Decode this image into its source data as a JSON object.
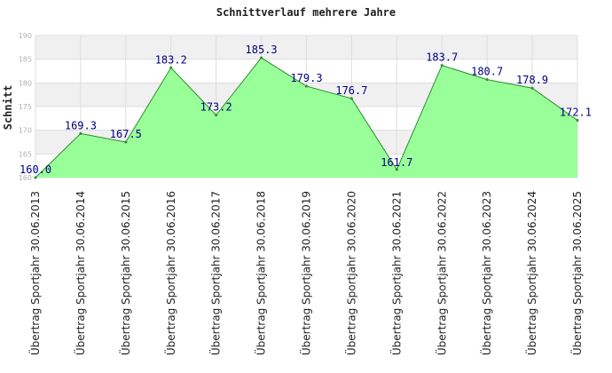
{
  "chart_data": {
    "type": "area",
    "title": "Schnittverlauf mehrere Jahre",
    "xlabel": "",
    "ylabel": "Schnitt",
    "ylim": [
      160,
      190
    ],
    "yticks": [
      160,
      165,
      170,
      175,
      180,
      185,
      190
    ],
    "grid": true,
    "legend": "none",
    "categories": [
      "Übertrag Sportjahr 30.06.2013",
      "Übertrag Sportjahr 30.06.2014",
      "Übertrag Sportjahr 30.06.2015",
      "Übertrag Sportjahr 30.06.2016",
      "Übertrag Sportjahr 30.06.2017",
      "Übertrag Sportjahr 30.06.2018",
      "Übertrag Sportjahr 30.06.2019",
      "Übertrag Sportjahr 30.06.2020",
      "Übertrag Sportjahr 30.06.2021",
      "Übertrag Sportjahr 30.06.2022",
      "Übertrag Sportjahr 30.06.2023",
      "Übertrag Sportjahr 30.06.2024",
      "Übertrag Sportjahr 30.06.2025"
    ],
    "values": [
      160.0,
      169.3,
      167.5,
      183.2,
      173.2,
      185.3,
      179.3,
      176.7,
      161.7,
      183.7,
      180.7,
      178.9,
      172.1
    ],
    "data_labels": [
      "160.0",
      "169.3",
      "167.5",
      "183.2",
      "173.2",
      "185.3",
      "179.3",
      "176.7",
      "161.7",
      "183.7",
      "180.7",
      "178.9",
      "172.1"
    ],
    "colors": {
      "fill": "#99ff99",
      "line": "#2e8b2e",
      "band_alt": "#f0f0f0",
      "grid": "#dddddd",
      "data_label": "#000080"
    }
  }
}
